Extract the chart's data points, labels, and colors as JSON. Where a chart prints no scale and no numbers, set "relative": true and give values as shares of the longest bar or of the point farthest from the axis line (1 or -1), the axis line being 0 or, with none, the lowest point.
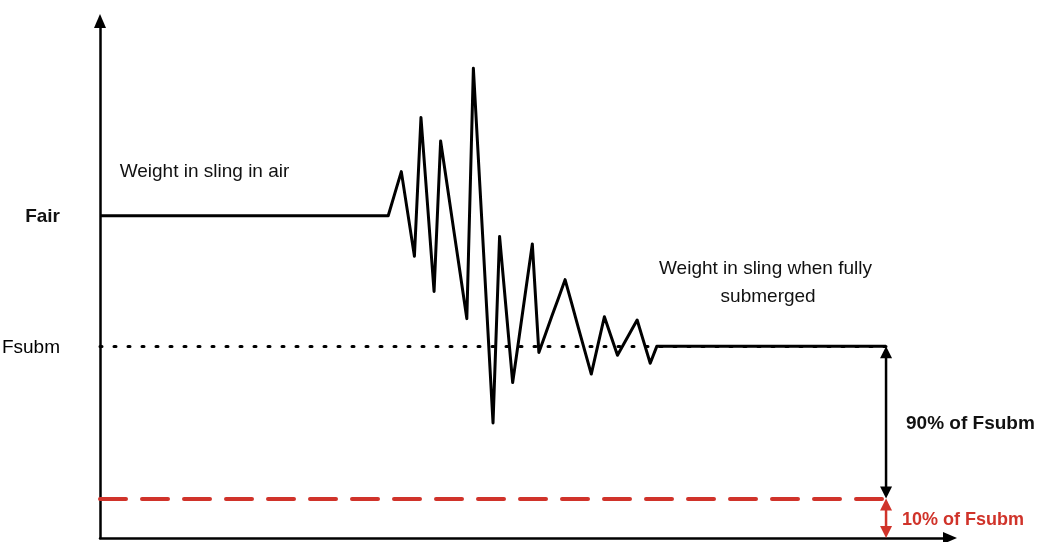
{
  "chart_data": {
    "type": "line",
    "relative": true,
    "color": "#000000",
    "line_style": "solid",
    "marker": "none",
    "categories": [
      null,
      null,
      null,
      null,
      null,
      null,
      null,
      null,
      null,
      null,
      null,
      null,
      null,
      null,
      null,
      null,
      null,
      null,
      null,
      null,
      null,
      null,
      null,
      null,
      null,
      null,
      null,
      null,
      null,
      null,
      null,
      null,
      null,
      null,
      null,
      null,
      null,
      null,
      null,
      null,
      null,
      null,
      null,
      null,
      null,
      null,
      null,
      null,
      null,
      null,
      null,
      null,
      null,
      null,
      null,
      null,
      null,
      null,
      null,
      null,
      null,
      null,
      null,
      null,
      null,
      null,
      null,
      null,
      null,
      null,
      null,
      null,
      null,
      null,
      null,
      null,
      null,
      null,
      null,
      null,
      null,
      null,
      null,
      null,
      null,
      null,
      null,
      null,
      null,
      null,
      null,
      null,
      null,
      null,
      null,
      null,
      null,
      null,
      null,
      null,
      null,
      null,
      null,
      null,
      null,
      null,
      null,
      null,
      null,
      null,
      null,
      null,
      null,
      null,
      null,
      null,
      null,
      null,
      null,
      null,
      null
    ],
    "values": [
      0.686,
      0.686,
      0.686,
      0.686,
      0.686,
      0.686,
      0.686,
      0.686,
      0.686,
      0.686,
      0.686,
      0.686,
      0.686,
      0.686,
      0.686,
      0.686,
      0.686,
      0.686,
      0.686,
      0.686,
      0.686,
      0.686,
      0.686,
      0.686,
      0.686,
      0.686,
      0.686,
      0.686,
      0.686,
      0.686,
      0.686,
      0.686,
      0.686,
      0.686,
      0.686,
      0.686,
      0.686,
      0.686,
      0.686,
      0.686,
      0.686,
      0.686,
      0.686,
      0.686,
      0.686,
      0.733,
      0.78,
      0.69,
      0.6,
      0.895,
      0.71,
      0.525,
      0.845,
      0.751,
      0.656,
      0.562,
      0.467,
      1,
      0.748,
      0.497,
      0.245,
      0.642,
      0.487,
      0.331,
      0.429,
      0.528,
      0.626,
      0.395,
      0.434,
      0.473,
      0.511,
      0.55,
      0.5,
      0.449,
      0.399,
      0.349,
      0.41,
      0.471,
      0.43,
      0.389,
      0.414,
      0.439,
      0.464,
      0.418,
      0.372,
      0.408,
      0.408,
      0.408,
      0.408,
      0.408,
      0.408,
      0.408,
      0.408,
      0.408,
      0.408,
      0.408,
      0.408,
      0.408,
      0.408,
      0.408,
      0.408,
      0.408,
      0.408,
      0.408,
      0.408,
      0.408,
      0.408,
      0.408,
      0.408,
      0.408,
      0.408,
      0.408,
      0.408,
      0.408,
      0.408,
      0.408,
      0.408,
      0.408,
      0.408,
      0.408,
      0.408
    ],
    "ref_lines": [
      {
        "axis": "y",
        "value": 0.408,
        "label": "Fsubm",
        "color": "#000000",
        "line_style": "dotted"
      },
      {
        "axis": "y",
        "value": 0.084,
        "label": "10% of Fsubm",
        "color": "#d0332a",
        "line_style": "dashed"
      }
    ],
    "annotations": [
      "Fair",
      "Weight in sling in air",
      "Weight in sling when fully submerged",
      "90% of Fsubm"
    ]
  }
}
